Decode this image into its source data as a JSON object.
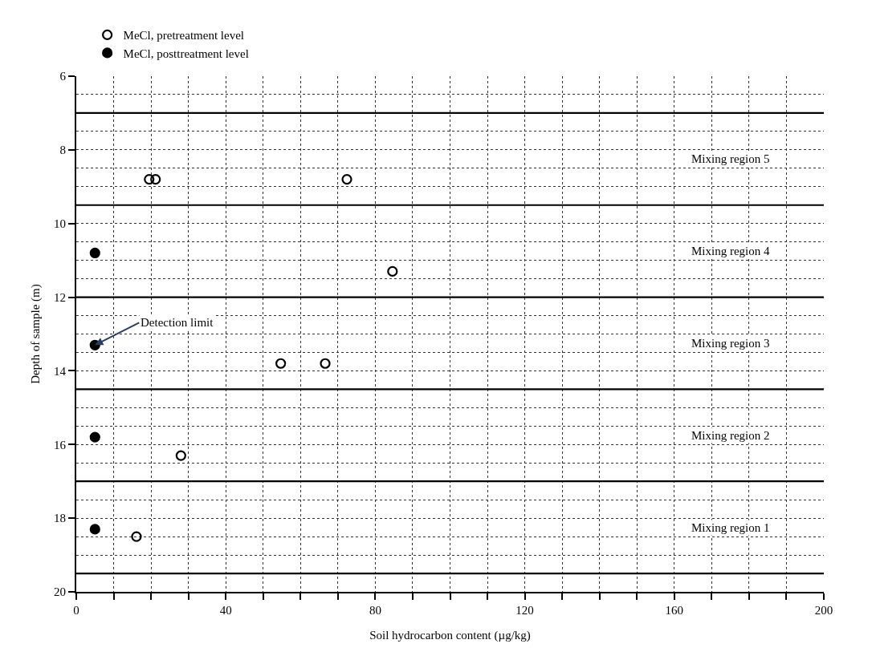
{
  "chart_data": {
    "type": "scatter",
    "xlabel": "Soil hydrocarbon content (µg/kg)",
    "ylabel": "Depth of sample (m)",
    "xlim": [
      0,
      200
    ],
    "ylim": [
      20,
      6
    ],
    "xticks": [
      0,
      {
        "value": 10,
        "label": null
      },
      {
        "value": 20,
        "label": null
      },
      {
        "value": 30,
        "label": null
      },
      40,
      {
        "value": 50,
        "label": null
      },
      {
        "value": 60,
        "label": null
      },
      {
        "value": 70,
        "label": null
      },
      80,
      {
        "value": 90,
        "label": null
      },
      {
        "value": 100,
        "label": null
      },
      {
        "value": 110,
        "label": null
      },
      120,
      {
        "value": 130,
        "label": null
      },
      {
        "value": 140,
        "label": null
      },
      {
        "value": 150,
        "label": null
      },
      160,
      {
        "value": 170,
        "label": null
      },
      {
        "value": 180,
        "label": null
      },
      {
        "value": 190,
        "label": null
      },
      200
    ],
    "yticks": [
      6,
      8,
      10,
      12,
      14,
      16,
      18,
      20
    ],
    "grid": true,
    "legend": "top left",
    "series": [
      {
        "name": "MeCl, pretreatment level",
        "color": "#000000",
        "marker": "circle-open",
        "x": [
          19.5,
          21.2,
          72.4,
          84.6,
          54.7,
          66.6,
          28.0,
          16.1
        ],
        "values": [
          8.8,
          8.8,
          8.8,
          11.3,
          13.8,
          13.8,
          16.3,
          18.5
        ]
      },
      {
        "name": "MeCl, posttreatment level",
        "color": "#000000",
        "marker": "circle",
        "x": [
          5,
          5,
          5,
          5
        ],
        "values": [
          10.8,
          13.3,
          15.8,
          18.3
        ]
      }
    ],
    "ref_lines": [
      {
        "axis": "y",
        "value": 7
      },
      {
        "axis": "y",
        "value": 9.5
      },
      {
        "axis": "y",
        "value": 12
      },
      {
        "axis": "y",
        "value": 14.5
      },
      {
        "axis": "y",
        "value": 17
      },
      {
        "axis": "y",
        "value": 19.5
      }
    ],
    "annotations": [
      "Mixing region 5",
      "Mixing region 4",
      "Mixing region 3",
      "Mixing region 2",
      "Mixing region 1",
      {
        "text": "Detection limit",
        "x": 5,
        "y": 13.3
      }
    ]
  }
}
